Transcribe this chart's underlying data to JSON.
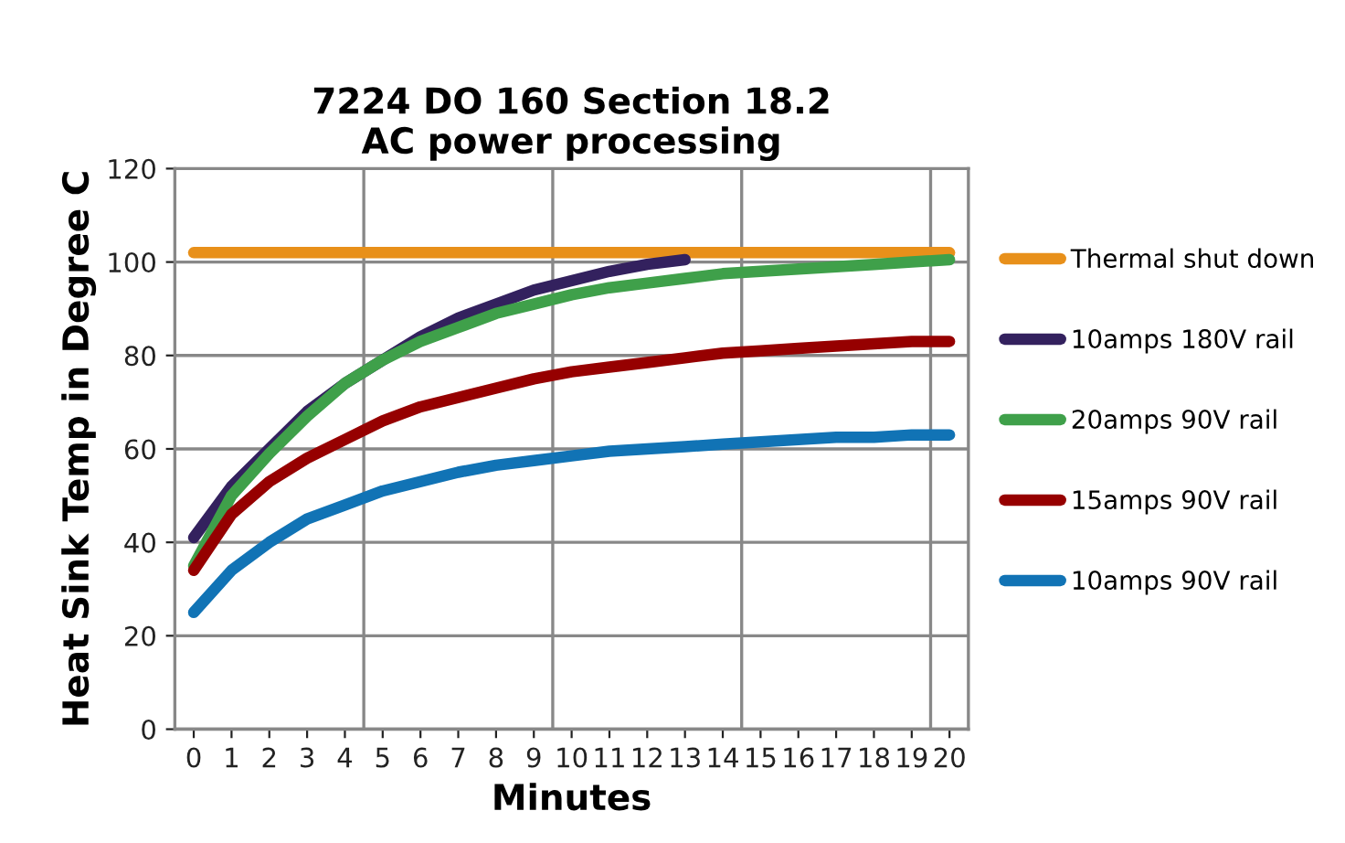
{
  "chart_data": {
    "type": "line",
    "title": "7224 DO 160 Section 18.2\nAC power processing",
    "xlabel": "Minutes",
    "ylabel": "Heat Sink Temp in Degree C",
    "categories": [
      "0",
      "1",
      "2",
      "3",
      "4",
      "5",
      "6",
      "7",
      "8",
      "9",
      "10",
      "11",
      "12",
      "13",
      "14",
      "15",
      "16",
      "17",
      "18",
      "19",
      "20"
    ],
    "ylim": [
      0,
      120
    ],
    "yticks": [
      0,
      20,
      40,
      60,
      80,
      100,
      120
    ],
    "grid": true,
    "legend": "right",
    "marker": "none",
    "line_style": "solid",
    "series": [
      {
        "name": "Thermal shut down",
        "color": "#e8901a",
        "values": [
          102,
          102,
          102,
          102,
          102,
          102,
          102,
          102,
          102,
          102,
          102,
          102,
          102,
          102,
          102,
          102,
          102,
          102,
          102,
          102,
          102
        ]
      },
      {
        "name": "10amps 180V rail",
        "color": "#33215e",
        "values": [
          41,
          52,
          60,
          68,
          74,
          79,
          84,
          88,
          91,
          94,
          96,
          98,
          99.5,
          100.5,
          null,
          null,
          null,
          null,
          null,
          null,
          null
        ]
      },
      {
        "name": "20amps 90V rail",
        "color": "#3fa04a",
        "values": [
          35,
          50,
          59,
          67,
          74,
          79,
          83,
          86,
          89,
          91,
          93,
          94.5,
          95.5,
          96.5,
          97.5,
          98,
          98.5,
          99,
          99.5,
          100,
          100.5
        ]
      },
      {
        "name": "15amps 90V rail",
        "color": "#960000",
        "values": [
          34,
          46,
          53,
          58,
          62,
          66,
          69,
          71,
          73,
          75,
          76.5,
          77.5,
          78.5,
          79.5,
          80.5,
          81,
          81.5,
          82,
          82.5,
          83,
          83
        ]
      },
      {
        "name": "10amps 90V rail",
        "color": "#1173b5",
        "values": [
          25,
          34,
          40,
          45,
          48,
          51,
          53,
          55,
          56.5,
          57.5,
          58.5,
          59.5,
          60,
          60.5,
          61,
          61.5,
          62,
          62.5,
          62.5,
          63,
          63
        ]
      }
    ]
  }
}
